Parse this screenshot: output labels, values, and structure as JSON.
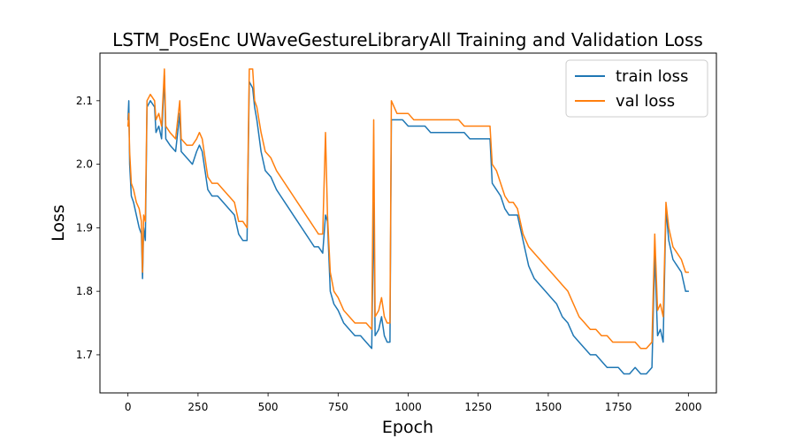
{
  "chart_data": {
    "type": "line",
    "title": "LSTM_PosEnc UWaveGestureLibraryAll Training and Validation Loss",
    "xlabel": "Epoch",
    "ylabel": "Loss",
    "xlim": [
      -100,
      2100
    ],
    "ylim": [
      1.64,
      2.175
    ],
    "xticks": [
      0,
      250,
      500,
      750,
      1000,
      1250,
      1500,
      1750,
      2000
    ],
    "xtick_labels": [
      "0",
      "250",
      "500",
      "750",
      "1000",
      "1250",
      "1500",
      "1750",
      "2000"
    ],
    "yticks": [
      1.7,
      1.8,
      1.9,
      2.0,
      2.1
    ],
    "ytick_labels": [
      "1.7",
      "1.8",
      "1.9",
      "2.0",
      "2.1"
    ],
    "legend_position": "top-right",
    "grid": false,
    "series": [
      {
        "name": "train loss",
        "color": "#1f77b4",
        "points": [
          [
            0,
            2.07
          ],
          [
            3,
            2.1
          ],
          [
            6,
            2.0
          ],
          [
            12,
            1.95
          ],
          [
            20,
            1.94
          ],
          [
            30,
            1.92
          ],
          [
            40,
            1.9
          ],
          [
            48,
            1.89
          ],
          [
            52,
            1.82
          ],
          [
            56,
            1.9
          ],
          [
            62,
            1.88
          ],
          [
            68,
            2.09
          ],
          [
            80,
            2.1
          ],
          [
            95,
            2.09
          ],
          [
            100,
            2.05
          ],
          [
            110,
            2.06
          ],
          [
            120,
            2.04
          ],
          [
            130,
            2.14
          ],
          [
            135,
            2.04
          ],
          [
            150,
            2.03
          ],
          [
            170,
            2.02
          ],
          [
            185,
            2.08
          ],
          [
            190,
            2.02
          ],
          [
            210,
            2.01
          ],
          [
            230,
            2.0
          ],
          [
            245,
            2.02
          ],
          [
            255,
            2.03
          ],
          [
            265,
            2.02
          ],
          [
            275,
            1.99
          ],
          [
            285,
            1.96
          ],
          [
            300,
            1.95
          ],
          [
            320,
            1.95
          ],
          [
            340,
            1.94
          ],
          [
            360,
            1.93
          ],
          [
            380,
            1.92
          ],
          [
            395,
            1.89
          ],
          [
            410,
            1.88
          ],
          [
            425,
            1.88
          ],
          [
            433,
            2.13
          ],
          [
            445,
            2.12
          ],
          [
            452,
            2.09
          ],
          [
            460,
            2.07
          ],
          [
            475,
            2.02
          ],
          [
            490,
            1.99
          ],
          [
            510,
            1.98
          ],
          [
            530,
            1.96
          ],
          [
            545,
            1.95
          ],
          [
            560,
            1.94
          ],
          [
            575,
            1.93
          ],
          [
            590,
            1.92
          ],
          [
            605,
            1.91
          ],
          [
            620,
            1.9
          ],
          [
            635,
            1.89
          ],
          [
            650,
            1.88
          ],
          [
            665,
            1.87
          ],
          [
            680,
            1.87
          ],
          [
            695,
            1.86
          ],
          [
            705,
            1.92
          ],
          [
            712,
            1.91
          ],
          [
            722,
            1.8
          ],
          [
            735,
            1.78
          ],
          [
            750,
            1.77
          ],
          [
            770,
            1.75
          ],
          [
            790,
            1.74
          ],
          [
            810,
            1.73
          ],
          [
            830,
            1.73
          ],
          [
            850,
            1.72
          ],
          [
            870,
            1.71
          ],
          [
            877,
            1.94
          ],
          [
            882,
            1.73
          ],
          [
            895,
            1.74
          ],
          [
            905,
            1.76
          ],
          [
            915,
            1.73
          ],
          [
            925,
            1.72
          ],
          [
            935,
            1.72
          ],
          [
            940,
            2.07
          ],
          [
            960,
            2.07
          ],
          [
            980,
            2.07
          ],
          [
            1000,
            2.06
          ],
          [
            1020,
            2.06
          ],
          [
            1040,
            2.06
          ],
          [
            1060,
            2.06
          ],
          [
            1080,
            2.05
          ],
          [
            1100,
            2.05
          ],
          [
            1120,
            2.05
          ],
          [
            1140,
            2.05
          ],
          [
            1160,
            2.05
          ],
          [
            1180,
            2.05
          ],
          [
            1200,
            2.05
          ],
          [
            1220,
            2.04
          ],
          [
            1240,
            2.04
          ],
          [
            1260,
            2.04
          ],
          [
            1275,
            2.04
          ],
          [
            1292,
            2.04
          ],
          [
            1300,
            1.97
          ],
          [
            1315,
            1.96
          ],
          [
            1330,
            1.95
          ],
          [
            1345,
            1.93
          ],
          [
            1360,
            1.92
          ],
          [
            1375,
            1.92
          ],
          [
            1390,
            1.92
          ],
          [
            1410,
            1.88
          ],
          [
            1430,
            1.84
          ],
          [
            1450,
            1.82
          ],
          [
            1470,
            1.81
          ],
          [
            1490,
            1.8
          ],
          [
            1510,
            1.79
          ],
          [
            1530,
            1.78
          ],
          [
            1550,
            1.76
          ],
          [
            1570,
            1.75
          ],
          [
            1590,
            1.73
          ],
          [
            1610,
            1.72
          ],
          [
            1630,
            1.71
          ],
          [
            1650,
            1.7
          ],
          [
            1670,
            1.7
          ],
          [
            1690,
            1.69
          ],
          [
            1710,
            1.68
          ],
          [
            1730,
            1.68
          ],
          [
            1750,
            1.68
          ],
          [
            1770,
            1.67
          ],
          [
            1790,
            1.67
          ],
          [
            1810,
            1.68
          ],
          [
            1830,
            1.67
          ],
          [
            1850,
            1.67
          ],
          [
            1870,
            1.68
          ],
          [
            1880,
            1.86
          ],
          [
            1890,
            1.73
          ],
          [
            1900,
            1.74
          ],
          [
            1910,
            1.72
          ],
          [
            1920,
            1.93
          ],
          [
            1930,
            1.88
          ],
          [
            1945,
            1.85
          ],
          [
            1960,
            1.84
          ],
          [
            1975,
            1.83
          ],
          [
            1990,
            1.8
          ],
          [
            2000,
            1.8
          ]
        ]
      },
      {
        "name": "val loss",
        "color": "#ff7f0e",
        "points": [
          [
            0,
            2.06
          ],
          [
            3,
            2.08
          ],
          [
            6,
            2.02
          ],
          [
            12,
            1.97
          ],
          [
            20,
            1.96
          ],
          [
            30,
            1.94
          ],
          [
            40,
            1.93
          ],
          [
            48,
            1.91
          ],
          [
            52,
            1.83
          ],
          [
            56,
            1.92
          ],
          [
            62,
            1.91
          ],
          [
            68,
            2.1
          ],
          [
            80,
            2.11
          ],
          [
            95,
            2.1
          ],
          [
            100,
            2.07
          ],
          [
            110,
            2.08
          ],
          [
            120,
            2.06
          ],
          [
            130,
            2.15
          ],
          [
            135,
            2.06
          ],
          [
            150,
            2.05
          ],
          [
            170,
            2.04
          ],
          [
            185,
            2.1
          ],
          [
            190,
            2.04
          ],
          [
            210,
            2.03
          ],
          [
            230,
            2.03
          ],
          [
            245,
            2.04
          ],
          [
            255,
            2.05
          ],
          [
            265,
            2.04
          ],
          [
            275,
            2.01
          ],
          [
            285,
            1.98
          ],
          [
            300,
            1.97
          ],
          [
            320,
            1.97
          ],
          [
            340,
            1.96
          ],
          [
            360,
            1.95
          ],
          [
            380,
            1.94
          ],
          [
            395,
            1.91
          ],
          [
            410,
            1.91
          ],
          [
            425,
            1.9
          ],
          [
            433,
            2.15
          ],
          [
            445,
            2.15
          ],
          [
            452,
            2.1
          ],
          [
            460,
            2.09
          ],
          [
            475,
            2.05
          ],
          [
            490,
            2.02
          ],
          [
            510,
            2.01
          ],
          [
            530,
            1.99
          ],
          [
            545,
            1.98
          ],
          [
            560,
            1.97
          ],
          [
            575,
            1.96
          ],
          [
            590,
            1.95
          ],
          [
            605,
            1.94
          ],
          [
            620,
            1.93
          ],
          [
            635,
            1.92
          ],
          [
            650,
            1.91
          ],
          [
            665,
            1.9
          ],
          [
            680,
            1.89
          ],
          [
            695,
            1.89
          ],
          [
            705,
            2.05
          ],
          [
            712,
            1.92
          ],
          [
            722,
            1.83
          ],
          [
            735,
            1.8
          ],
          [
            750,
            1.79
          ],
          [
            770,
            1.77
          ],
          [
            790,
            1.76
          ],
          [
            810,
            1.75
          ],
          [
            830,
            1.75
          ],
          [
            850,
            1.75
          ],
          [
            870,
            1.74
          ],
          [
            877,
            2.07
          ],
          [
            882,
            1.76
          ],
          [
            895,
            1.77
          ],
          [
            905,
            1.79
          ],
          [
            915,
            1.76
          ],
          [
            925,
            1.75
          ],
          [
            935,
            1.75
          ],
          [
            940,
            2.1
          ],
          [
            960,
            2.08
          ],
          [
            980,
            2.08
          ],
          [
            1000,
            2.08
          ],
          [
            1020,
            2.07
          ],
          [
            1040,
            2.07
          ],
          [
            1060,
            2.07
          ],
          [
            1080,
            2.07
          ],
          [
            1100,
            2.07
          ],
          [
            1120,
            2.07
          ],
          [
            1140,
            2.07
          ],
          [
            1160,
            2.07
          ],
          [
            1180,
            2.07
          ],
          [
            1200,
            2.06
          ],
          [
            1220,
            2.06
          ],
          [
            1240,
            2.06
          ],
          [
            1260,
            2.06
          ],
          [
            1275,
            2.06
          ],
          [
            1292,
            2.06
          ],
          [
            1300,
            2.0
          ],
          [
            1315,
            1.99
          ],
          [
            1330,
            1.97
          ],
          [
            1345,
            1.95
          ],
          [
            1360,
            1.94
          ],
          [
            1375,
            1.94
          ],
          [
            1390,
            1.93
          ],
          [
            1410,
            1.89
          ],
          [
            1430,
            1.87
          ],
          [
            1450,
            1.86
          ],
          [
            1470,
            1.85
          ],
          [
            1490,
            1.84
          ],
          [
            1510,
            1.83
          ],
          [
            1530,
            1.82
          ],
          [
            1550,
            1.81
          ],
          [
            1570,
            1.8
          ],
          [
            1590,
            1.78
          ],
          [
            1610,
            1.76
          ],
          [
            1630,
            1.75
          ],
          [
            1650,
            1.74
          ],
          [
            1670,
            1.74
          ],
          [
            1690,
            1.73
          ],
          [
            1710,
            1.73
          ],
          [
            1730,
            1.72
          ],
          [
            1750,
            1.72
          ],
          [
            1770,
            1.72
          ],
          [
            1790,
            1.72
          ],
          [
            1810,
            1.72
          ],
          [
            1830,
            1.71
          ],
          [
            1850,
            1.71
          ],
          [
            1870,
            1.72
          ],
          [
            1880,
            1.89
          ],
          [
            1890,
            1.77
          ],
          [
            1900,
            1.78
          ],
          [
            1910,
            1.76
          ],
          [
            1920,
            1.94
          ],
          [
            1930,
            1.9
          ],
          [
            1945,
            1.87
          ],
          [
            1960,
            1.86
          ],
          [
            1975,
            1.85
          ],
          [
            1990,
            1.83
          ],
          [
            2000,
            1.83
          ]
        ]
      }
    ]
  }
}
